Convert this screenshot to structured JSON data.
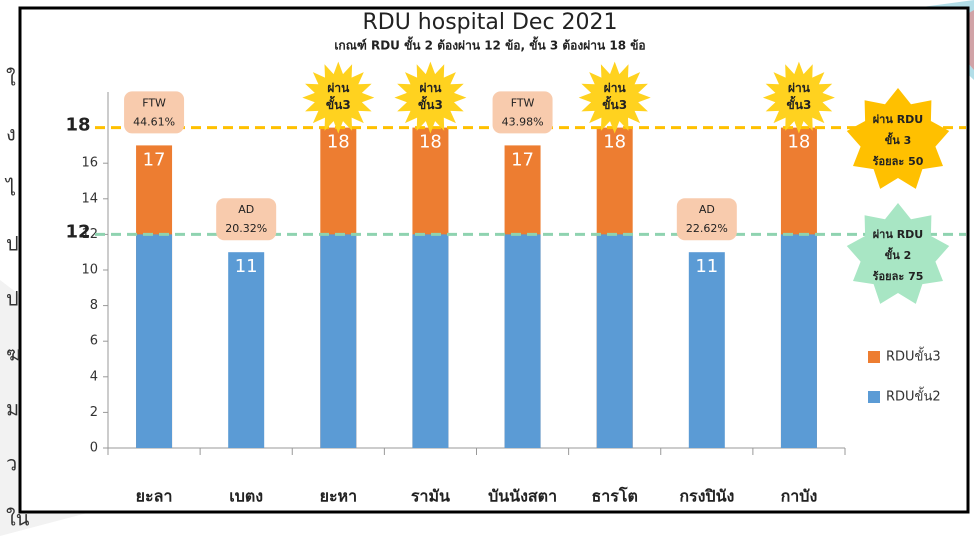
{
  "chart_data": {
    "type": "overlapped-bar",
    "title": "RDU  hospital  Dec 2021",
    "subtitle": "เกณฑ์ RDU ขั้น 2 ต้องผ่าน 12 ข้อ, ขั้น 3 ต้องผ่าน 18 ข้อ",
    "categories": [
      "ยะลา",
      "เบตง",
      "ยะหา",
      "รามัน",
      "บันนังสตา",
      "ธารโต",
      "กรงปินัง",
      "กาบัง"
    ],
    "series": [
      {
        "name": "RDUขั้น3",
        "color": "#ed7d31",
        "values": [
          17,
          null,
          18,
          18,
          17,
          18,
          null,
          18
        ]
      },
      {
        "name": "RDUขั้น2",
        "color": "#5b9bd5",
        "values": [
          12,
          11,
          12,
          12,
          12,
          12,
          11,
          12
        ]
      }
    ],
    "ylim": [
      0,
      20
    ],
    "yticks": [
      0,
      2,
      4,
      6,
      8,
      10,
      12,
      14,
      16
    ],
    "reference_lines": [
      {
        "value": 18,
        "color": "#ffc000"
      },
      {
        "value": 12,
        "color": "#8fd3b0"
      }
    ],
    "annotations": [
      {
        "shape": "box",
        "lines": [
          "FTW",
          "44.61%"
        ]
      },
      {
        "shape": "box",
        "lines": [
          "AD",
          "20.32%"
        ]
      },
      {
        "shape": "star",
        "lines": [
          "ผ่าน",
          "ขั้น3"
        ]
      },
      {
        "shape": "star",
        "lines": [
          "ผ่าน",
          "ขั้น3"
        ]
      },
      {
        "shape": "box",
        "lines": [
          "FTW",
          "43.98%"
        ]
      },
      {
        "shape": "star",
        "lines": [
          "ผ่าน",
          "ขั้น3"
        ]
      },
      {
        "shape": "box",
        "lines": [
          "AD",
          "22.62%"
        ]
      },
      {
        "shape": "star",
        "lines": [
          "ผ่าน",
          "ขั้น3"
        ]
      }
    ],
    "side_notes": [
      {
        "color": "#ffc000",
        "lines": [
          "ผ่าน RDU",
          "ขั้น 3",
          "ร้อยละ 50"
        ]
      },
      {
        "color": "#a8e6c4",
        "lines": [
          "ผ่าน RDU",
          "ขั้น 2",
          "ร้อยละ 75"
        ]
      }
    ],
    "slide_text": [
      "ใ",
      "ง",
      "ไ",
      "ป",
      "ป",
      "ฆ",
      "ม",
      "ว",
      "ใน"
    ]
  }
}
